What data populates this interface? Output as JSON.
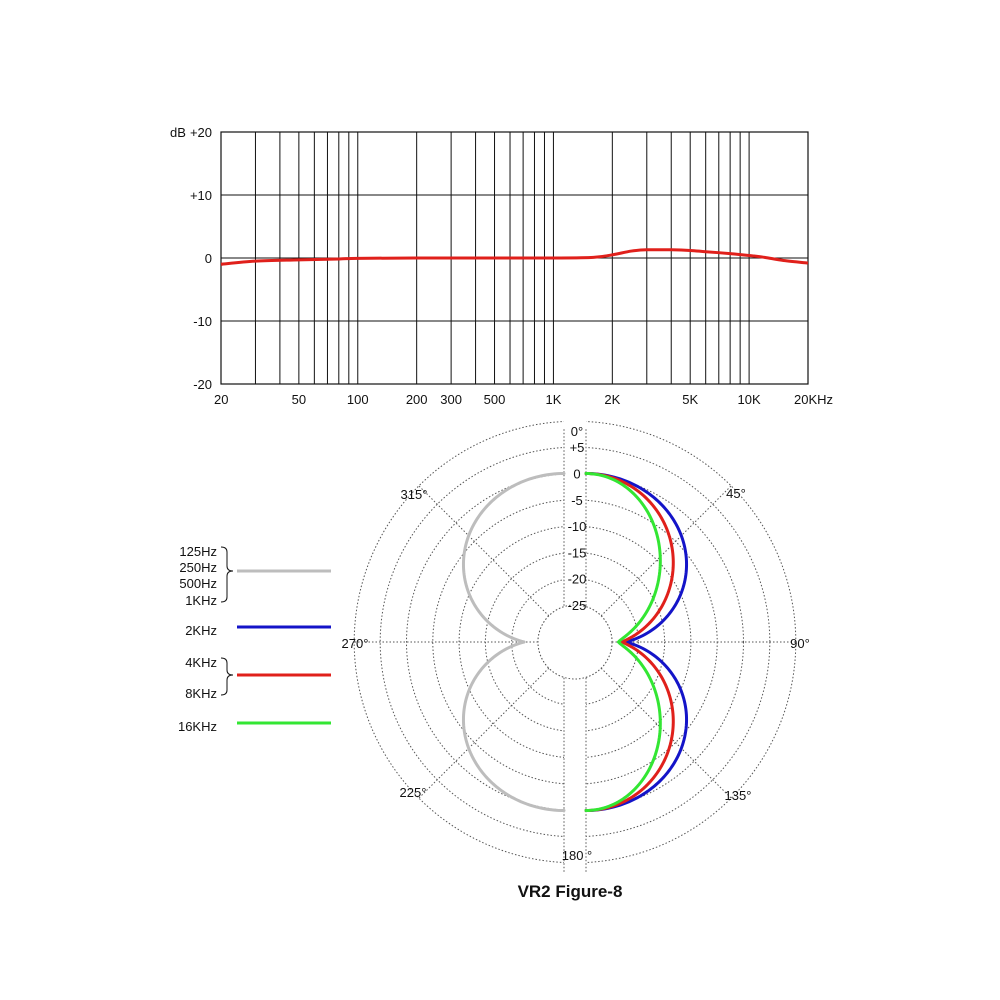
{
  "chart_data": [
    {
      "type": "line",
      "title": "",
      "xscale": "log",
      "xlim": [
        20,
        20000
      ],
      "ylim": [
        -20,
        20
      ],
      "grid": true,
      "yunit": "dB",
      "ytick_labels": [
        {
          "value": 20,
          "label": "+20"
        },
        {
          "value": 10,
          "label": "+10"
        },
        {
          "value": 0,
          "label": "0"
        },
        {
          "value": -10,
          "label": "-10"
        },
        {
          "value": -20,
          "label": "-20"
        }
      ],
      "xtick_labels": [
        {
          "value": 20,
          "label": "20"
        },
        {
          "value": 50,
          "label": "50"
        },
        {
          "value": 100,
          "label": "100"
        },
        {
          "value": 200,
          "label": "200"
        },
        {
          "value": 300,
          "label": "300"
        },
        {
          "value": 500,
          "label": "500"
        },
        {
          "value": 1000,
          "label": "1K"
        },
        {
          "value": 2000,
          "label": "2K"
        },
        {
          "value": 5000,
          "label": "5K"
        },
        {
          "value": 10000,
          "label": "10K"
        },
        {
          "value": 20000,
          "label": "20KHz"
        }
      ],
      "series": [
        {
          "color": "#e0201b",
          "points": [
            [
              20,
              -1.0
            ],
            [
              30,
              -0.5
            ],
            [
              50,
              -0.3
            ],
            [
              80,
              -0.15
            ],
            [
              100,
              -0.05
            ],
            [
              200,
              0
            ],
            [
              500,
              0
            ],
            [
              1000,
              0
            ],
            [
              1600,
              0.1
            ],
            [
              2000,
              0.5
            ],
            [
              2500,
              1.1
            ],
            [
              3000,
              1.3
            ],
            [
              4000,
              1.3
            ],
            [
              5000,
              1.2
            ],
            [
              6000,
              1.0
            ],
            [
              8000,
              0.7
            ],
            [
              10000,
              0.4
            ],
            [
              12000,
              0.1
            ],
            [
              15000,
              -0.4
            ],
            [
              20000,
              -0.8
            ]
          ]
        }
      ]
    },
    {
      "type": "polar",
      "title": "VR2 Figure-8",
      "rlim": [
        -25,
        5
      ],
      "radial_tick_labels": [
        {
          "value": 5,
          "label": "+5"
        },
        {
          "value": 0,
          "label": "0"
        },
        {
          "value": -5,
          "label": "-5"
        },
        {
          "value": -10,
          "label": "-10"
        },
        {
          "value": -15,
          "label": "-15"
        },
        {
          "value": -20,
          "label": "-20"
        },
        {
          "value": -25,
          "label": "-25"
        }
      ],
      "angle_labels": [
        "0°",
        "45°",
        "90°",
        "135°",
        "180 °",
        "225°",
        "270°",
        "315°"
      ],
      "series": [
        {
          "legend": [
            "125Hz",
            "250Hz",
            "500Hz",
            "1KHz"
          ],
          "color": "#bdbdbd",
          "shape": "cos",
          "exponent": 1.0,
          "side": "left"
        },
        {
          "legend": [
            "2KHz"
          ],
          "color": "#1414c8",
          "shape": "cos",
          "exponent": 1.0,
          "side": "right"
        },
        {
          "legend": [
            "4KHz",
            "8KHz"
          ],
          "color": "#e0201b",
          "shape": "cos",
          "exponent": 1.15,
          "side": "right"
        },
        {
          "legend": [
            "16KHz"
          ],
          "color": "#33e633",
          "shape": "cos",
          "exponent": 1.35,
          "side": "right"
        }
      ]
    }
  ]
}
